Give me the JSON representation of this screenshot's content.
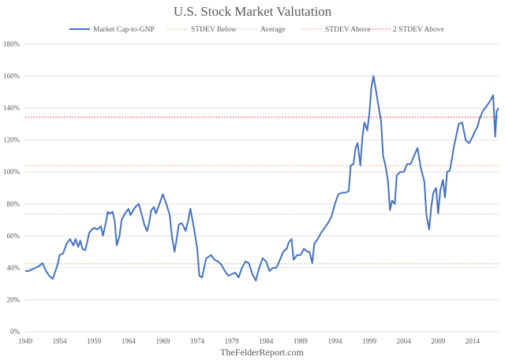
{
  "chart_data": {
    "type": "line",
    "title": "U.S. Stock Market Valutation",
    "source": "TheFelderReport.com",
    "xlabel": "",
    "ylabel": "",
    "xlim": [
      1949,
      2017.8
    ],
    "ylim": [
      0,
      180
    ],
    "y_ticks": [
      0,
      20,
      40,
      60,
      80,
      100,
      120,
      140,
      160,
      180
    ],
    "y_tick_labels": [
      "0%",
      "20%",
      "40%",
      "60%",
      "80%",
      "100%",
      "120%",
      "140%",
      "160%",
      "180%"
    ],
    "x_ticks": [
      1949,
      1954,
      1959,
      1964,
      1969,
      1974,
      1979,
      1984,
      1989,
      1994,
      1999,
      2004,
      2009,
      2014
    ],
    "x_tick_labels": [
      "1949",
      "1954",
      "1959",
      "1964",
      "1969",
      "1974",
      "1979",
      "1984",
      "1989",
      "1994",
      "1999",
      "2004",
      "2009",
      "2014"
    ],
    "grid": true,
    "legend_position": "top-center",
    "legend": [
      {
        "name": "Market Cap-to-GNP",
        "style": "solid",
        "color": "#4472c4"
      },
      {
        "name": "STDEV Below",
        "style": "dotted",
        "color": "#a9d18e"
      },
      {
        "name": "Average",
        "style": "dotted",
        "color": "#c9d4b8"
      },
      {
        "name": "STDEV Above",
        "style": "dotted",
        "color": "#f4b183"
      },
      {
        "name": "2 STDEV Above",
        "style": "dotted",
        "color": "#e06666"
      }
    ],
    "reference_lines": [
      {
        "name": "STDEV Below",
        "value": 42.5,
        "color": "#a9d18e"
      },
      {
        "name": "Average",
        "value": 73.5,
        "color": "#c9d4b8"
      },
      {
        "name": "STDEV Above",
        "value": 104,
        "color": "#f4b183"
      },
      {
        "name": "2 STDEV Above",
        "value": 134.3,
        "color": "#e06666"
      }
    ],
    "series": [
      {
        "name": "Market Cap-to-GNP",
        "color": "#4472c4",
        "x": [
          1949.0,
          1949.5,
          1950.0,
          1950.5,
          1951.0,
          1951.5,
          1952.0,
          1952.5,
          1953.0,
          1953.3,
          1953.7,
          1954.0,
          1954.5,
          1955.0,
          1955.5,
          1956.0,
          1956.3,
          1956.7,
          1957.0,
          1957.3,
          1957.7,
          1958.0,
          1958.3,
          1958.7,
          1959.0,
          1959.5,
          1960.0,
          1960.3,
          1960.7,
          1961.0,
          1961.3,
          1961.7,
          1962.0,
          1962.3,
          1962.7,
          1963.0,
          1963.5,
          1964.0,
          1964.3,
          1964.7,
          1965.0,
          1965.5,
          1966.0,
          1966.3,
          1966.7,
          1967.0,
          1967.3,
          1967.7,
          1968.0,
          1968.5,
          1969.0,
          1969.5,
          1970.0,
          1970.3,
          1970.7,
          1971.0,
          1971.3,
          1971.7,
          1972.0,
          1972.3,
          1972.7,
          1973.0,
          1973.5,
          1974.0,
          1974.3,
          1974.7,
          1975.0,
          1975.3,
          1975.7,
          1976.0,
          1976.5,
          1977.0,
          1977.5,
          1978.0,
          1978.5,
          1979.0,
          1979.5,
          1980.0,
          1980.5,
          1981.0,
          1981.5,
          1982.0,
          1982.5,
          1983.0,
          1983.5,
          1984.0,
          1984.5,
          1985.0,
          1985.5,
          1986.0,
          1986.5,
          1987.0,
          1987.3,
          1987.7,
          1988.0,
          1988.5,
          1989.0,
          1989.5,
          1990.0,
          1990.3,
          1990.7,
          1991.0,
          1991.5,
          1992.0,
          1992.5,
          1993.0,
          1993.5,
          1994.0,
          1994.5,
          1995.0,
          1995.5,
          1996.0,
          1996.3,
          1996.7,
          1997.0,
          1997.3,
          1997.7,
          1998.0,
          1998.3,
          1998.7,
          1999.0,
          1999.3,
          1999.6,
          2000.0,
          2000.3,
          2000.7,
          2001.0,
          2001.3,
          2001.7,
          2002.0,
          2002.3,
          2002.7,
          2003.0,
          2003.5,
          2004.0,
          2004.5,
          2005.0,
          2005.5,
          2006.0,
          2006.5,
          2007.0,
          2007.3,
          2007.7,
          2008.0,
          2008.3,
          2008.7,
          2009.0,
          2009.3,
          2009.7,
          2010.0,
          2010.3,
          2010.7,
          2011.0,
          2011.3,
          2011.7,
          2012.0,
          2012.5,
          2013.0,
          2013.5,
          2014.0,
          2014.3,
          2014.7,
          2015.0,
          2015.5,
          2016.0,
          2016.5,
          2017.0,
          2017.3,
          2017.5,
          2017.8
        ],
        "values": [
          38,
          38,
          39,
          40,
          41,
          43,
          38,
          35,
          33,
          37,
          42,
          48,
          49,
          55,
          58,
          54,
          58,
          53,
          57,
          52,
          51,
          56,
          62,
          64,
          65,
          64,
          66,
          60,
          68,
          75,
          74,
          75,
          69,
          54,
          60,
          70,
          74,
          77,
          73,
          76,
          78,
          80,
          72,
          67,
          63,
          68,
          76,
          78,
          74,
          80,
          86,
          80,
          73,
          60,
          50,
          58,
          67,
          68,
          66,
          63,
          70,
          77,
          65,
          52,
          35,
          34,
          40,
          46,
          47,
          48,
          45,
          44,
          42,
          38,
          35,
          36,
          37,
          34,
          40,
          44,
          43,
          36,
          32,
          40,
          46,
          44,
          38,
          40,
          40,
          45,
          50,
          52,
          56,
          58,
          45,
          48,
          48,
          52,
          50,
          50,
          43,
          55,
          58,
          62,
          65,
          68,
          72,
          80,
          86,
          87,
          87,
          88,
          104,
          105,
          115,
          118,
          104,
          122,
          131,
          126,
          136,
          153,
          160,
          150,
          142,
          132,
          110,
          105,
          95,
          76,
          82,
          80,
          98,
          100,
          100,
          105,
          105,
          110,
          115,
          102,
          94,
          73,
          64,
          78,
          87,
          90,
          74,
          88,
          95,
          84,
          100,
          101,
          108,
          116,
          124,
          130,
          131,
          120,
          118,
          122,
          125,
          128,
          133,
          138,
          141,
          144,
          148,
          122,
          138,
          140
        ]
      }
    ]
  }
}
